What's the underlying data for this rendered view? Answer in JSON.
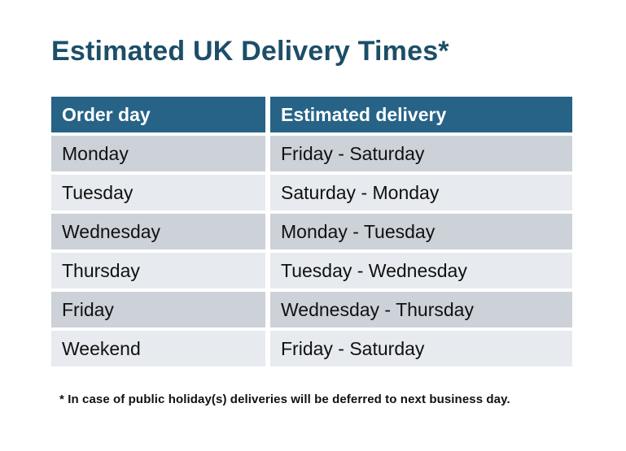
{
  "title": "Estimated UK Delivery Times*",
  "table": {
    "headers": [
      "Order day",
      "Estimated delivery"
    ],
    "rows": [
      {
        "order_day": "Monday",
        "estimated_delivery": "Friday - Saturday"
      },
      {
        "order_day": "Tuesday",
        "estimated_delivery": "Saturday - Monday"
      },
      {
        "order_day": "Wednesday",
        "estimated_delivery": "Monday - Tuesday"
      },
      {
        "order_day": "Thursday",
        "estimated_delivery": "Tuesday - Wednesday"
      },
      {
        "order_day": "Friday",
        "estimated_delivery": "Wednesday - Thursday"
      },
      {
        "order_day": "Weekend",
        "estimated_delivery": "Friday - Saturday"
      }
    ]
  },
  "footnote": "* In case of public holiday(s) deliveries will be deferred to next business day.",
  "colors": {
    "title_text": "#1d4e68",
    "header_bg": "#266387",
    "header_text": "#ffffff",
    "row_odd_bg": "#cdd2d9",
    "row_even_bg": "#e7eaee",
    "body_text": "#111111",
    "background": "#ffffff"
  }
}
